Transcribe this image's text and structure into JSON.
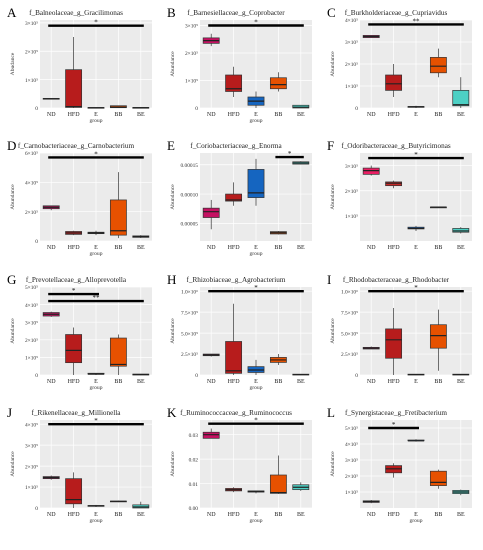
{
  "figure": {
    "background": "#ffffff",
    "panel_bg": "#ebebeb",
    "grid": "#ffffff"
  },
  "colors": {
    "ND": "#c2185b",
    "HFD": "#b71c1c",
    "E": "#1565c0",
    "BB": "#e65100",
    "BE": "#4dd0c4"
  },
  "chart_data": [
    {
      "type": "box",
      "letter": "A",
      "title": "f_Balneolaceae_g_Gracilimonas",
      "xlabel": "group",
      "ylabel": "Abudance",
      "categories": [
        "ND",
        "HFD",
        "E",
        "BB",
        "BE"
      ],
      "colors": [
        "#c51162",
        "#b71c1c",
        "#1565c0",
        "#e65100",
        "#4dd0c4"
      ],
      "yticks": [
        0,
        10,
        20,
        30
      ],
      "ytick_labels": [
        "0",
        "1×10⁵",
        "2×10⁵",
        "3×10⁵"
      ],
      "ylim": [
        0,
        31
      ],
      "boxes": [
        {
          "min": 3.1,
          "q1": 3.1,
          "median": 3.2,
          "q3": 3.4,
          "max": 3.4
        },
        {
          "min": 0,
          "q1": 0.2,
          "median": 0.5,
          "q3": 13.5,
          "max": 25
        },
        {
          "min": 0,
          "q1": 0,
          "median": 0.05,
          "q3": 0.2,
          "max": 0.2
        },
        {
          "min": 0,
          "q1": 0.1,
          "median": 0.3,
          "q3": 0.8,
          "max": 0.9
        },
        {
          "min": 0,
          "q1": 0,
          "median": 0.1,
          "q3": 0.2,
          "max": 0.2
        }
      ],
      "sig": [
        {
          "from": 1,
          "to": 5,
          "level": 29,
          "label": "*"
        }
      ]
    },
    {
      "type": "box",
      "letter": "B",
      "title": "f_Barnesiellaceae_g_Coprobacter",
      "xlabel": "group",
      "ylabel": "Abundance",
      "categories": [
        "ND",
        "HFD",
        "E",
        "BB",
        "BE"
      ],
      "colors": [
        "#c51162",
        "#b71c1c",
        "#1565c0",
        "#e65100",
        "#4dd0c4"
      ],
      "yticks": [
        0,
        10,
        20,
        30
      ],
      "ytick_labels": [
        "0",
        "1×10⁵",
        "2×10⁵",
        "3×10⁵"
      ],
      "ylim": [
        0,
        32
      ],
      "boxes": [
        {
          "min": 22.5,
          "q1": 23.5,
          "median": 24.5,
          "q3": 25.5,
          "max": 27
        },
        {
          "min": 4,
          "q1": 6,
          "median": 7,
          "q3": 12,
          "max": 15
        },
        {
          "min": 0,
          "q1": 1,
          "median": 2.5,
          "q3": 4,
          "max": 6
        },
        {
          "min": 6,
          "q1": 7,
          "median": 8.5,
          "q3": 11,
          "max": 13
        },
        {
          "min": 0,
          "q1": 0,
          "median": 0.3,
          "q3": 1,
          "max": 1
        }
      ],
      "sig": [
        {
          "from": 1,
          "to": 5,
          "level": 30,
          "label": "*"
        }
      ]
    },
    {
      "type": "box",
      "letter": "C",
      "title": "f_Burkholderiaceae_g_Cupriavidus",
      "xlabel": "",
      "ylabel": "Abundance",
      "categories": [
        "ND",
        "HFD",
        "E",
        "BB",
        "BE"
      ],
      "colors": [
        "#c51162",
        "#b71c1c",
        "#1565c0",
        "#e65100",
        "#4dd0c4"
      ],
      "yticks": [
        0,
        10,
        20,
        30,
        40
      ],
      "ytick_labels": [
        "0",
        "1×10⁵",
        "2×10⁵",
        "3×10⁵",
        "4×10⁵"
      ],
      "ylim": [
        0,
        40
      ],
      "boxes": [
        {
          "min": 32,
          "q1": 32,
          "median": 32.5,
          "q3": 33,
          "max": 33
        },
        {
          "min": 5,
          "q1": 8,
          "median": 11,
          "q3": 15,
          "max": 20
        },
        {
          "min": 0,
          "q1": 0.3,
          "median": 0.5,
          "q3": 0.7,
          "max": 1
        },
        {
          "min": 14,
          "q1": 16,
          "median": 19,
          "q3": 23,
          "max": 27
        },
        {
          "min": 0,
          "q1": 1,
          "median": 1.5,
          "q3": 8,
          "max": 14
        }
      ],
      "sig": [
        {
          "from": 1,
          "to": 5,
          "level": 38,
          "label": "**"
        }
      ]
    },
    {
      "type": "box",
      "letter": "D",
      "title": "f_Carnobacteriaceae_g_Carnobacterium",
      "xlabel": "group",
      "ylabel": "Abundance",
      "categories": [
        "ND",
        "HFD",
        "E",
        "BB",
        "BE"
      ],
      "colors": [
        "#c51162",
        "#b71c1c",
        "#1565c0",
        "#e65100",
        "#4dd0c4"
      ],
      "yticks": [
        0,
        2,
        4,
        6
      ],
      "ytick_labels": [
        "0",
        "2×10⁵",
        "4×10⁵",
        "6×10⁵"
      ],
      "ylim": [
        0,
        6
      ],
      "boxes": [
        {
          "min": 2.1,
          "q1": 2.2,
          "median": 2.3,
          "q3": 2.4,
          "max": 2.4
        },
        {
          "min": 0.4,
          "q1": 0.45,
          "median": 0.55,
          "q3": 0.65,
          "max": 0.7
        },
        {
          "min": 0.4,
          "q1": 0.5,
          "median": 0.55,
          "q3": 0.6,
          "max": 0.7
        },
        {
          "min": 0.2,
          "q1": 0.4,
          "median": 0.7,
          "q3": 2.8,
          "max": 4.7
        },
        {
          "min": 0.2,
          "q1": 0.25,
          "median": 0.3,
          "q3": 0.35,
          "max": 0.4
        }
      ],
      "sig": [
        {
          "from": 1,
          "to": 5,
          "level": 5.7,
          "label": "*"
        }
      ]
    },
    {
      "type": "box",
      "letter": "E",
      "title": "f_Coriobacteriaceae_g_Enorma",
      "xlabel": "group",
      "ylabel": "Abundance",
      "categories": [
        "ND",
        "HFD",
        "E",
        "BB",
        "BE"
      ],
      "colors": [
        "#c51162",
        "#b71c1c",
        "#1565c0",
        "#e65100",
        "#4dd0c4"
      ],
      "yticks": [
        5e-05,
        0.0001,
        0.00015
      ],
      "ytick_labels": [
        "0.00005",
        "0.00010",
        "0.00015"
      ],
      "ylim": [
        2e-05,
        0.00017
      ],
      "boxes": [
        {
          "min": 4e-05,
          "q1": 6e-05,
          "median": 7e-05,
          "q3": 7.6e-05,
          "max": 9e-05
        },
        {
          "min": 8e-05,
          "q1": 8.8e-05,
          "median": 9e-05,
          "q3": 0.0001,
          "max": 0.00012
        },
        {
          "min": 8e-05,
          "q1": 9.4e-05,
          "median": 0.000102,
          "q3": 0.000142,
          "max": 0.00016
        },
        {
          "min": 3.1e-05,
          "q1": 3.2e-05,
          "median": 3.4e-05,
          "q3": 3.6e-05,
          "max": 3.7e-05
        },
        {
          "min": 0.000151,
          "q1": 0.000151,
          "median": 0.000153,
          "q3": 0.000155,
          "max": 0.000156
        }
      ],
      "sig": [
        {
          "from": 4,
          "to": 5,
          "level": 0.000163,
          "label": "*"
        }
      ]
    },
    {
      "type": "box",
      "letter": "F",
      "title": "f_Odoribacteraceae_g_Butyricimonas",
      "xlabel": "",
      "ylabel": "Abundance",
      "categories": [
        "ND",
        "HFD",
        "E",
        "BB",
        "BE"
      ],
      "colors": [
        "#e91e63",
        "#c62828",
        "#1565c0",
        "#e65100",
        "#4dd0c4"
      ],
      "yticks": [
        10,
        20,
        30
      ],
      "ytick_labels": [
        "1×10⁵",
        "2×10⁵",
        "3×10⁵"
      ],
      "ylim": [
        0,
        35
      ],
      "boxes": [
        {
          "min": 26,
          "q1": 26.5,
          "median": 28,
          "q3": 29,
          "max": 30
        },
        {
          "min": 21,
          "q1": 22,
          "median": 23,
          "q3": 23.5,
          "max": 24
        },
        {
          "min": 4,
          "q1": 4.8,
          "median": 5,
          "q3": 5.5,
          "max": 6
        },
        {
          "min": 13.5,
          "q1": 13.5,
          "median": 13.5,
          "q3": 13.5,
          "max": 13.5
        },
        {
          "min": 3,
          "q1": 3.5,
          "median": 4,
          "q3": 5,
          "max": 5.5
        }
      ],
      "sig": [
        {
          "from": 1,
          "to": 5,
          "level": 33,
          "label": "*"
        }
      ]
    },
    {
      "type": "box",
      "letter": "G",
      "title": "f_Prevotellaceae_g_Alloprevotella",
      "xlabel": "group",
      "ylabel": "Abundance",
      "categories": [
        "ND",
        "HFD",
        "E",
        "BB",
        "BE"
      ],
      "colors": [
        "#c51162",
        "#b71c1c",
        "#1565c0",
        "#e65100",
        "#4dd0c4"
      ],
      "yticks": [
        0,
        10,
        20,
        30,
        40,
        50
      ],
      "ytick_labels": [
        "0",
        "1×10⁵",
        "2×10⁵",
        "3×10⁵",
        "4×10⁵",
        "5×10⁵"
      ],
      "ylim": [
        0,
        50
      ],
      "boxes": [
        {
          "min": 33,
          "q1": 33.5,
          "median": 34.5,
          "q3": 35.5,
          "max": 36
        },
        {
          "min": 0,
          "q1": 7,
          "median": 14,
          "q3": 23,
          "max": 27
        },
        {
          "min": 0,
          "q1": 0.5,
          "median": 0.5,
          "q3": 1,
          "max": 1
        },
        {
          "min": 0,
          "q1": 5,
          "median": 6,
          "q3": 21,
          "max": 23
        },
        {
          "min": 0,
          "q1": 0,
          "median": 0.3,
          "q3": 0.5,
          "max": 0.5
        }
      ],
      "sig": [
        {
          "from": 1,
          "to": 3,
          "level": 46,
          "label": "*"
        },
        {
          "from": 1,
          "to": 5,
          "level": 42,
          "label": "**"
        }
      ]
    },
    {
      "type": "box",
      "letter": "H",
      "title": "f_Rhizobiaceae_g_Agrobacterium",
      "xlabel": "group",
      "ylabel": "Abundance",
      "categories": [
        "ND",
        "HFD",
        "E",
        "BB",
        "BE"
      ],
      "colors": [
        "#c51162",
        "#b71c1c",
        "#1565c0",
        "#e65100",
        "#4dd0c4"
      ],
      "yticks": [
        0,
        2.5,
        5,
        7.5,
        10
      ],
      "ytick_labels": [
        "0",
        "2.5×10⁵",
        "5.0×10⁵",
        "7.5×10⁵",
        "1.0×10⁶"
      ],
      "ylim": [
        0,
        10.5
      ],
      "boxes": [
        {
          "min": 2.2,
          "q1": 2.3,
          "median": 2.4,
          "q3": 2.5,
          "max": 2.5
        },
        {
          "min": 0,
          "q1": 0.2,
          "median": 0.5,
          "q3": 4,
          "max": 8.5
        },
        {
          "min": 0,
          "q1": 0.3,
          "median": 0.6,
          "q3": 1,
          "max": 1.8
        },
        {
          "min": 1.2,
          "q1": 1.5,
          "median": 1.8,
          "q3": 2.1,
          "max": 2.5
        },
        {
          "min": 0,
          "q1": 0,
          "median": 0.05,
          "q3": 0.1,
          "max": 0.1
        }
      ],
      "sig": [
        {
          "from": 1,
          "to": 5,
          "level": 10,
          "label": "*"
        }
      ]
    },
    {
      "type": "box",
      "letter": "I",
      "title": "f_Rhodobacteraceae_g_Rhodobacter",
      "xlabel": "",
      "ylabel": "Abundance",
      "categories": [
        "ND",
        "HFD",
        "E",
        "BB",
        "BE"
      ],
      "colors": [
        "#c51162",
        "#b71c1c",
        "#1565c0",
        "#e65100",
        "#4dd0c4"
      ],
      "yticks": [
        0,
        2.5,
        5,
        7.5,
        10
      ],
      "ytick_labels": [
        "0",
        "2.5×10⁵",
        "5.0×10⁵",
        "7.5×10⁵",
        "1.0×10⁶"
      ],
      "ylim": [
        0,
        10.5
      ],
      "boxes": [
        {
          "min": 3.1,
          "q1": 3.1,
          "median": 3.2,
          "q3": 3.3,
          "max": 3.4
        },
        {
          "min": 0,
          "q1": 2,
          "median": 4.2,
          "q3": 5.5,
          "max": 8
        },
        {
          "min": 0,
          "q1": 0,
          "median": 0.05,
          "q3": 0.1,
          "max": 0.1
        },
        {
          "min": 0.5,
          "q1": 3.2,
          "median": 4.7,
          "q3": 6,
          "max": 7.8
        },
        {
          "min": 0,
          "q1": 0,
          "median": 0.05,
          "q3": 0.1,
          "max": 0.1
        }
      ],
      "sig": [
        {
          "from": 1,
          "to": 5,
          "level": 10,
          "label": "*"
        }
      ]
    },
    {
      "type": "box",
      "letter": "J",
      "title": "f_Rikenellaceae_g_Millionella",
      "xlabel": "group",
      "ylabel": "Abundance",
      "categories": [
        "ND",
        "HFD",
        "E",
        "BB",
        "BE"
      ],
      "colors": [
        "#c51162",
        "#b71c1c",
        "#1565c0",
        "#e65100",
        "#4dd0c4"
      ],
      "yticks": [
        0,
        10,
        20,
        30,
        40
      ],
      "ytick_labels": [
        "0",
        "1×10⁵",
        "2×10⁵",
        "3×10⁵",
        "4×10⁵"
      ],
      "ylim": [
        0,
        42
      ],
      "boxes": [
        {
          "min": 13.5,
          "q1": 14,
          "median": 14.5,
          "q3": 15,
          "max": 15.5
        },
        {
          "min": 0,
          "q1": 2,
          "median": 4,
          "q3": 14,
          "max": 17
        },
        {
          "min": 0.5,
          "q1": 0.8,
          "median": 1,
          "q3": 1.2,
          "max": 1.5
        },
        {
          "min": 2.8,
          "q1": 3,
          "median": 3.2,
          "q3": 3.3,
          "max": 3.5
        },
        {
          "min": 0,
          "q1": 0,
          "median": 0.5,
          "q3": 1.5,
          "max": 3
        }
      ],
      "sig": [
        {
          "from": 1,
          "to": 5,
          "level": 40,
          "label": "*"
        }
      ]
    },
    {
      "type": "box",
      "letter": "K",
      "title": "f_Ruminococcaceae_g_Ruminococcus",
      "xlabel": "group",
      "ylabel": "Abundance",
      "categories": [
        "ND",
        "HFD",
        "E",
        "BB",
        "BE"
      ],
      "colors": [
        "#c51162",
        "#b71c1c",
        "#1565c0",
        "#e65100",
        "#4dd0c4"
      ],
      "yticks": [
        0,
        0.01,
        0.02,
        0.03
      ],
      "ytick_labels": [
        "0.00",
        "0.01",
        "0.02",
        "0.03"
      ],
      "ylim": [
        0,
        0.036
      ],
      "boxes": [
        {
          "min": 0.0285,
          "q1": 0.0285,
          "median": 0.03,
          "q3": 0.031,
          "max": 0.0325
        },
        {
          "min": 0.0065,
          "q1": 0.007,
          "median": 0.0075,
          "q3": 0.008,
          "max": 0.0085
        },
        {
          "min": 0.006,
          "q1": 0.0065,
          "median": 0.0068,
          "q3": 0.007,
          "max": 0.007
        },
        {
          "min": 0.0058,
          "q1": 0.006,
          "median": 0.0063,
          "q3": 0.0135,
          "max": 0.0215
        },
        {
          "min": 0.007,
          "q1": 0.0075,
          "median": 0.0085,
          "q3": 0.0095,
          "max": 0.0105
        }
      ],
      "sig": [
        {
          "from": 1,
          "to": 5,
          "level": 0.0345,
          "label": "*"
        }
      ]
    },
    {
      "type": "box",
      "letter": "L",
      "title": "f_Synergistaceae_g_Fretibacterium",
      "xlabel": "group",
      "ylabel": "Abundance",
      "categories": [
        "ND",
        "HFD",
        "E",
        "BB",
        "BE"
      ],
      "colors": [
        "#c51162",
        "#b71c1c",
        "#1565c0",
        "#e65100",
        "#4dd0c4"
      ],
      "yticks": [
        10,
        20,
        30,
        40,
        50
      ],
      "ytick_labels": [
        "1×10⁵",
        "2×10⁵",
        "3×10⁵",
        "4×10⁵",
        "5×10⁵"
      ],
      "ylim": [
        0,
        55
      ],
      "boxes": [
        {
          "min": 3,
          "q1": 3.5,
          "median": 4,
          "q3": 4.5,
          "max": 5
        },
        {
          "min": 19,
          "q1": 22,
          "median": 24.5,
          "q3": 26.5,
          "max": 28
        },
        {
          "min": 41.5,
          "q1": 42,
          "median": 42,
          "q3": 42.5,
          "max": 43
        },
        {
          "min": 12,
          "q1": 14,
          "median": 16,
          "q3": 23,
          "max": 24
        },
        {
          "min": 8,
          "q1": 9,
          "median": 10,
          "q3": 11,
          "max": 11.5
        }
      ],
      "sig": [
        {
          "from": 1,
          "to": 3,
          "level": 50,
          "label": "*"
        }
      ]
    }
  ]
}
